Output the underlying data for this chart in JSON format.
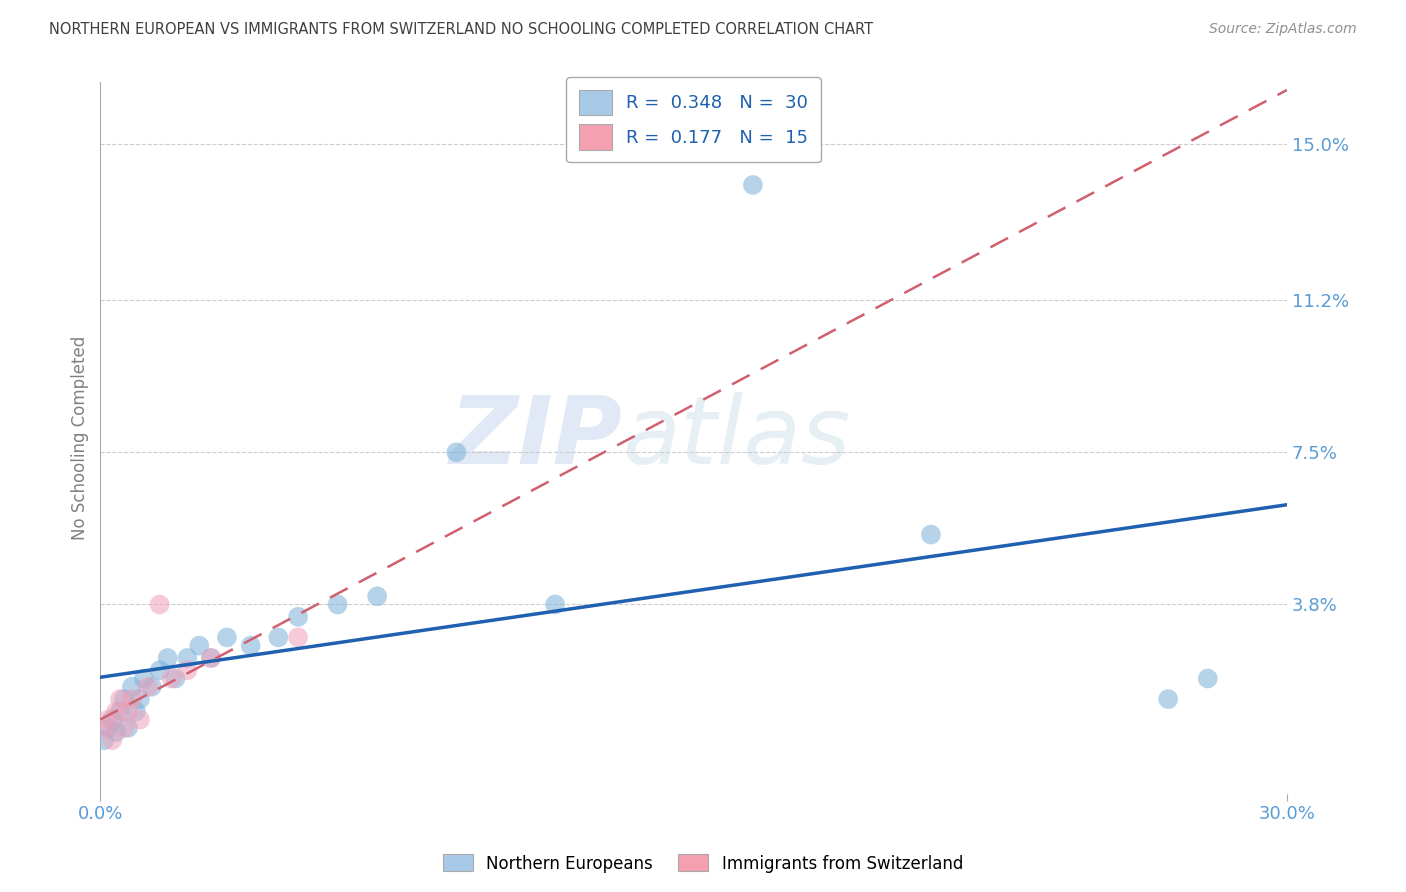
{
  "title": "NORTHERN EUROPEAN VS IMMIGRANTS FROM SWITZERLAND NO SCHOOLING COMPLETED CORRELATION CHART",
  "source": "Source: ZipAtlas.com",
  "ylabel": "No Schooling Completed",
  "xlabel": "",
  "x_tick_labels": [
    "0.0%",
    "30.0%"
  ],
  "y_tick_labels_right": [
    "15.0%",
    "11.2%",
    "7.5%",
    "3.8%"
  ],
  "y_tick_vals": [
    0.15,
    0.112,
    0.075,
    0.038
  ],
  "xlim": [
    0.0,
    0.3
  ],
  "ylim": [
    -0.008,
    0.165
  ],
  "legend_entries": [
    {
      "label": "R =  0.348   N =  30",
      "color": "#a8c8e8"
    },
    {
      "label": "R =  0.177   N =  15",
      "color": "#f4a0b0"
    }
  ],
  "watermark_zip": "ZIP",
  "watermark_atlas": "atlas",
  "blue_color": "#7ab0d8",
  "pink_color": "#f0a0b8",
  "blue_line_color": "#2060b0",
  "pink_line_color": "#d06070",
  "blue_scatter_x": [
    0.001,
    0.002,
    0.003,
    0.004,
    0.005,
    0.006,
    0.007,
    0.008,
    0.009,
    0.01,
    0.011,
    0.013,
    0.015,
    0.017,
    0.019,
    0.022,
    0.025,
    0.028,
    0.032,
    0.038,
    0.045,
    0.05,
    0.06,
    0.07,
    0.09,
    0.115,
    0.165,
    0.21,
    0.27,
    0.28
  ],
  "blue_scatter_y": [
    0.005,
    0.008,
    0.01,
    0.007,
    0.012,
    0.015,
    0.008,
    0.018,
    0.012,
    0.015,
    0.02,
    0.018,
    0.022,
    0.025,
    0.02,
    0.025,
    0.028,
    0.025,
    0.03,
    0.028,
    0.03,
    0.035,
    0.038,
    0.04,
    0.075,
    0.038,
    0.14,
    0.055,
    0.015,
    0.02
  ],
  "pink_scatter_x": [
    0.001,
    0.002,
    0.003,
    0.004,
    0.005,
    0.006,
    0.007,
    0.008,
    0.01,
    0.012,
    0.015,
    0.018,
    0.022,
    0.028,
    0.05
  ],
  "pink_scatter_y": [
    0.008,
    0.01,
    0.005,
    0.012,
    0.015,
    0.008,
    0.012,
    0.015,
    0.01,
    0.018,
    0.038,
    0.02,
    0.022,
    0.025,
    0.03
  ],
  "grid_color": "#cccccc",
  "bg_color": "#ffffff",
  "title_color": "#404040",
  "source_color": "#909090",
  "axis_label_color": "#808080",
  "tick_label_color": "#5b9bd5",
  "scatter_size": 200,
  "scatter_alpha": 0.55
}
